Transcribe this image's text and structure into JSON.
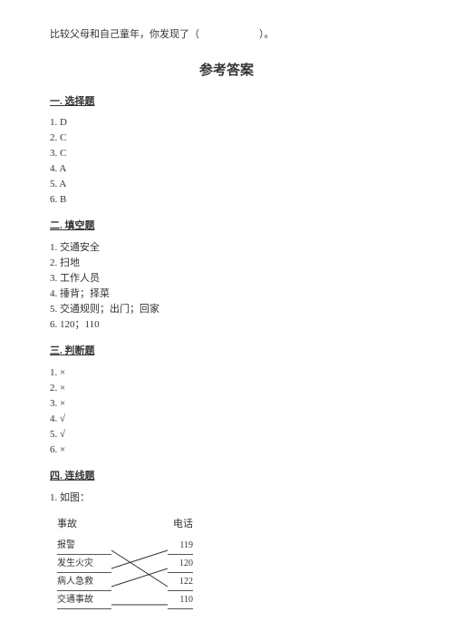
{
  "top_question": "比较父母和自己童年，你发现了（　　　　　　）。",
  "page_title": "参考答案",
  "sections": {
    "s1": {
      "heading": "一. 选择题",
      "items": [
        "1. D",
        "2. C",
        "3. C",
        "4. A",
        "5. A",
        "6. B"
      ]
    },
    "s2": {
      "heading": "二. 填空题",
      "items": [
        "1. 交通安全",
        "2. 扫地",
        "3. 工作人员",
        "4. 捶背；择菜",
        "5. 交通规则；出门；回家",
        "6. 120；110"
      ]
    },
    "s3": {
      "heading": "三. 判断题",
      "items": [
        "1. ×",
        "2. ×",
        "3. ×",
        "4. √",
        "5. √",
        "6. ×"
      ]
    },
    "s4": {
      "heading": "四. 连线题",
      "lead": "1. 如图：",
      "left_header": "事故",
      "right_header": "电话",
      "left": [
        "报警",
        "发生火灾",
        "病人急救",
        "交通事故"
      ],
      "right": [
        "119",
        "120",
        "122",
        "110"
      ],
      "connections": [
        {
          "from": 0,
          "to": 2
        },
        {
          "from": 1,
          "to": 0
        },
        {
          "from": 2,
          "to": 1
        },
        {
          "from": 3,
          "to": 3
        }
      ],
      "line_color": "#333333",
      "line_width": 1
    }
  }
}
